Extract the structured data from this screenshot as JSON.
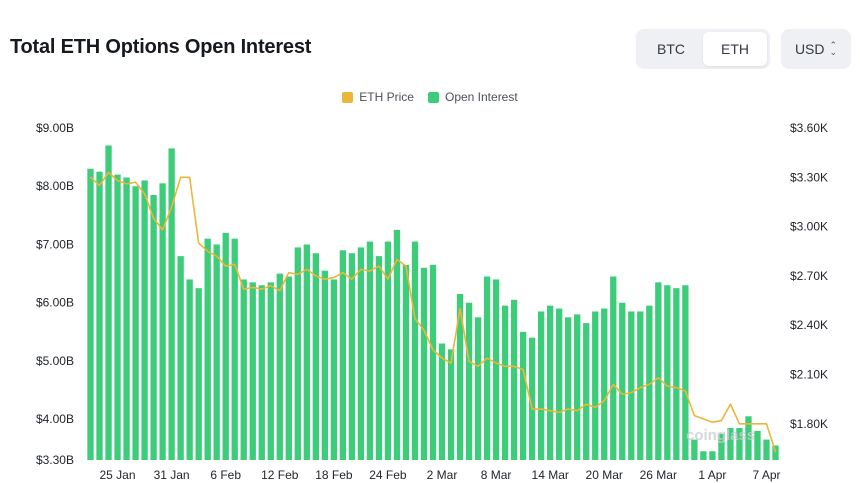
{
  "header": {
    "title": "Total ETH Options Open Interest",
    "asset_options": [
      "BTC",
      "ETH"
    ],
    "asset_selected": "ETH",
    "currency": "USD"
  },
  "watermark": "coinglass",
  "colors": {
    "open_interest": "#3ccc7a",
    "eth_price": "#ebb63a"
  },
  "chart_data": {
    "type": "bar",
    "title": "Total ETH Options Open Interest",
    "legend": [
      "ETH Price",
      "Open Interest"
    ],
    "legend_position": "top-center",
    "x_tick_labels": [
      "25 Jan",
      "31 Jan",
      "6 Feb",
      "12 Feb",
      "18 Feb",
      "24 Feb",
      "2 Mar",
      "8 Mar",
      "14 Mar",
      "20 Mar",
      "26 Mar",
      "1 Apr",
      "7 Apr"
    ],
    "x_tick_index": [
      3,
      9,
      15,
      21,
      27,
      33,
      39,
      45,
      51,
      57,
      63,
      69,
      75
    ],
    "y_left": {
      "ticks": [
        "$3.30B",
        "$4.00B",
        "$5.00B",
        "$6.00B",
        "$7.00B",
        "$8.00B",
        "$9.00B"
      ],
      "tick_values": [
        3.3,
        4.0,
        5.0,
        6.0,
        7.0,
        8.0,
        9.0
      ],
      "range": [
        3.3,
        9.0
      ],
      "unit": "$B"
    },
    "y_right": {
      "ticks": [
        "$1.80K",
        "$2.10K",
        "$2.40K",
        "$2.70K",
        "$3.00K",
        "$3.30K",
        "$3.60K"
      ],
      "tick_values": [
        1.8,
        2.1,
        2.4,
        2.7,
        3.0,
        3.3,
        3.6
      ],
      "range": [
        1.58,
        3.6
      ],
      "unit": "$K"
    },
    "x_start": "2024-01-22",
    "x_end": "2024-04-07",
    "series": [
      {
        "name": "Open Interest",
        "type": "bar",
        "axis": "left",
        "values": [
          8.3,
          8.25,
          8.7,
          8.2,
          8.15,
          8.0,
          8.1,
          7.85,
          8.05,
          8.65,
          6.8,
          6.4,
          6.25,
          7.1,
          7.0,
          7.2,
          7.1,
          6.4,
          6.35,
          6.3,
          6.35,
          6.5,
          6.45,
          6.95,
          7.0,
          6.85,
          6.55,
          6.4,
          6.9,
          6.85,
          6.95,
          7.05,
          6.8,
          7.05,
          7.25,
          6.65,
          7.05,
          6.6,
          6.65,
          5.3,
          5.2,
          6.15,
          6.0,
          5.75,
          6.45,
          6.4,
          5.95,
          6.05,
          5.5,
          5.4,
          5.85,
          5.95,
          5.9,
          5.75,
          5.8,
          5.65,
          5.85,
          5.9,
          6.45,
          6.0,
          5.85,
          5.85,
          5.95,
          6.35,
          6.3,
          6.25,
          6.3,
          3.65,
          3.45,
          3.45,
          3.75,
          3.85,
          3.85,
          4.05,
          3.8,
          3.65,
          3.55
        ]
      },
      {
        "name": "ETH Price",
        "type": "line",
        "axis": "right",
        "values": [
          3.3,
          3.25,
          3.33,
          3.28,
          3.26,
          3.27,
          3.2,
          3.05,
          2.98,
          3.12,
          3.3,
          3.3,
          2.9,
          2.85,
          2.82,
          2.76,
          2.77,
          2.62,
          2.63,
          2.62,
          2.64,
          2.61,
          2.72,
          2.71,
          2.74,
          2.7,
          2.68,
          2.69,
          2.72,
          2.68,
          2.74,
          2.73,
          2.76,
          2.68,
          2.8,
          2.76,
          2.44,
          2.37,
          2.25,
          2.2,
          2.17,
          2.5,
          2.18,
          2.15,
          2.2,
          2.17,
          2.15,
          2.15,
          2.13,
          1.89,
          1.89,
          1.88,
          1.87,
          1.89,
          1.88,
          1.92,
          1.9,
          1.94,
          2.04,
          1.98,
          1.99,
          2.02,
          2.04,
          2.08,
          2.03,
          2.02,
          2.0,
          1.85,
          1.83,
          1.81,
          1.82,
          1.92,
          1.8,
          1.8,
          1.8,
          1.8,
          1.63
        ]
      }
    ]
  }
}
